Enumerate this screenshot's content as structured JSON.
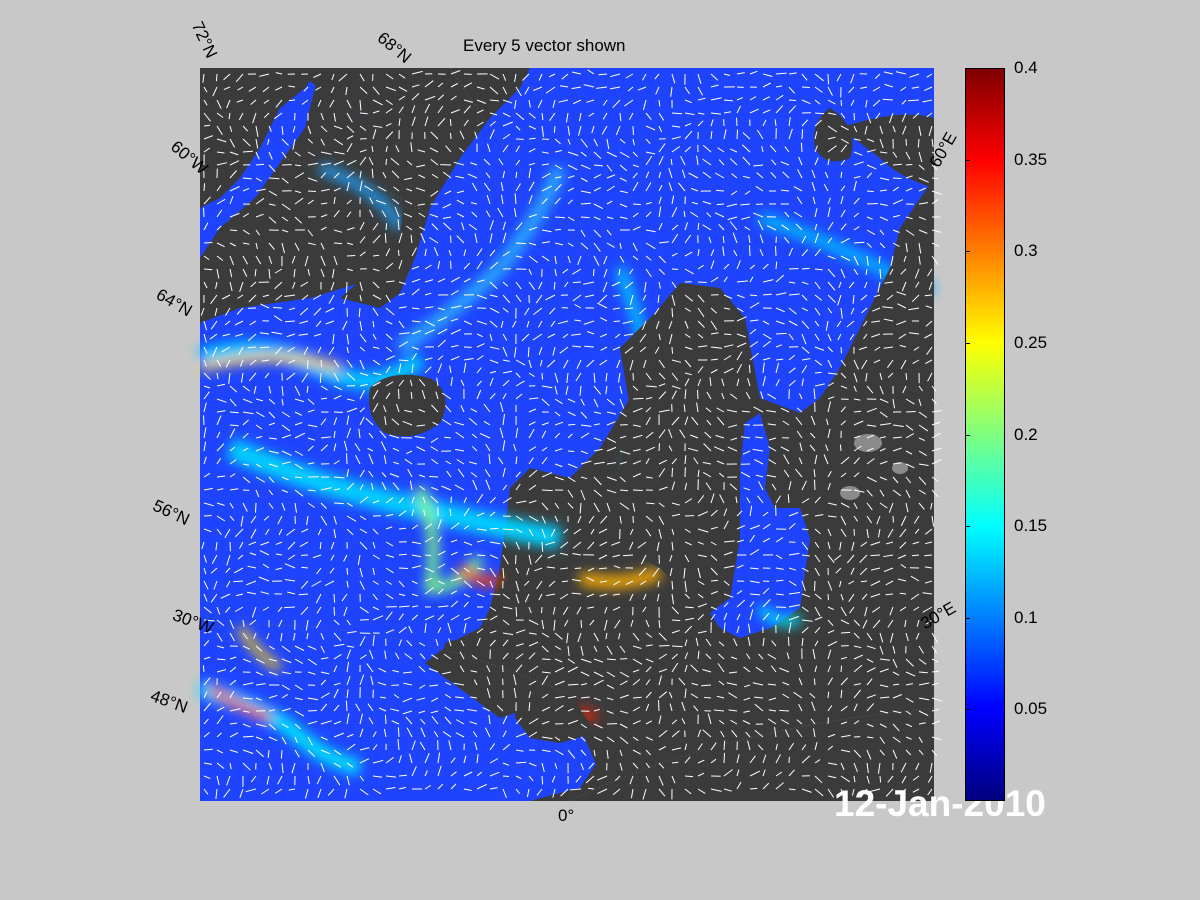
{
  "title": "Every 5 vector shown",
  "date_label": "12-Jan-2010",
  "map_labels": {
    "lat_72": "72°N",
    "lat_68": "68°N",
    "lat_64": "64°N",
    "lat_56": "56°N",
    "lat_48": "48°N",
    "lon_60w": "60°W",
    "lon_30w": "30°W",
    "lon_0": "0°",
    "lon_30e": "30°E",
    "lon_60e": "60°E"
  },
  "colorbar": {
    "min": 0,
    "max": 0.4,
    "ticks": [
      "0.4",
      "0.35",
      "0.3",
      "0.25",
      "0.2",
      "0.15",
      "0.1",
      "0.05"
    ],
    "tick_values": [
      0.4,
      0.35,
      0.3,
      0.25,
      0.2,
      0.15,
      0.1,
      0.05
    ],
    "colormap": "jet"
  },
  "colors": {
    "land": "#3b3b3b",
    "ocean_base": "#1a3cff",
    "vectors": "#ffffff",
    "figure_bg": "#c8c8c8"
  }
}
